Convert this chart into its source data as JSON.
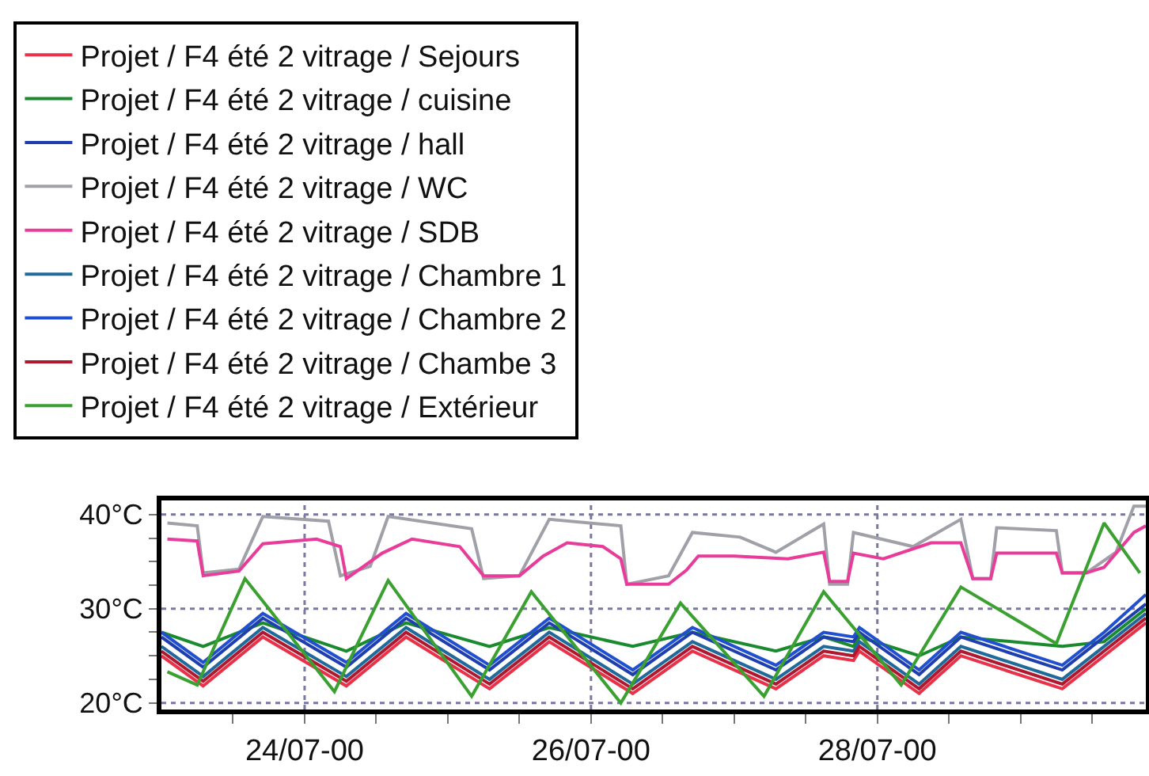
{
  "chart_data": {
    "type": "line",
    "x": [
      "2000-07-23T00:00",
      "2000-07-23T07:00",
      "2000-07-23T17:00",
      "2000-07-24T07:00",
      "2000-07-24T17:00",
      "2000-07-25T07:00",
      "2000-07-25T17:00",
      "2000-07-26T07:00",
      "2000-07-26T17:00",
      "2000-07-27T07:00",
      "2000-07-27T15:00",
      "2000-07-27T20:00",
      "2000-07-27T21:00",
      "2000-07-28T07:00",
      "2000-07-28T14:00",
      "2000-07-29T07:00",
      "2000-07-29T14:00",
      "2000-07-29T21:00"
    ],
    "series": [
      {
        "name": "Projet / F4 été 2 vitrage / Sejours",
        "color": "#e8324a",
        "values": [
          25,
          21.8,
          27,
          21.8,
          27,
          21.5,
          26.5,
          21,
          25.5,
          21.5,
          25,
          24.5,
          25.5,
          21,
          25,
          21.5,
          25,
          28.5
        ]
      },
      {
        "name": "Projet / F4 été 2 vitrage / cuisine",
        "color": "#1a8a2e",
        "values": [
          27.5,
          26,
          28.5,
          25.5,
          28.5,
          26,
          28,
          26,
          27.5,
          25.5,
          27,
          26,
          27,
          25,
          27,
          26,
          26.5,
          30
        ]
      },
      {
        "name": "Projet / F4 été 2 vitrage / hall",
        "color": "#1f3fb0",
        "values": [
          27,
          23.8,
          29,
          23.8,
          29,
          23.5,
          28.5,
          23,
          27.5,
          23.5,
          27,
          26.5,
          27.5,
          23,
          27,
          23.5,
          27,
          30.5
        ]
      },
      {
        "name": "Projet / F4 été 2 vitrage / WC",
        "color": "#a0a0a8",
        "x": [
          "2000-07-23T01:00",
          "2000-07-23T06:00",
          "2000-07-23T07:00",
          "2000-07-23T13:00",
          "2000-07-23T17:00",
          "2000-07-24T04:00",
          "2000-07-24T06:00",
          "2000-07-24T11:00",
          "2000-07-24T14:00",
          "2000-07-25T04:00",
          "2000-07-25T06:00",
          "2000-07-25T12:00",
          "2000-07-25T17:00",
          "2000-07-26T05:00",
          "2000-07-26T06:00",
          "2000-07-26T13:00",
          "2000-07-26T17:00",
          "2000-07-27T01:00",
          "2000-07-27T07:00",
          "2000-07-27T15:00",
          "2000-07-27T16:00",
          "2000-07-27T19:00",
          "2000-07-27T20:00",
          "2000-07-28T06:00",
          "2000-07-28T14:00",
          "2000-07-28T16:00",
          "2000-07-28T19:00",
          "2000-07-28T20:00",
          "2000-07-29T06:00",
          "2000-07-29T07:00",
          "2000-07-29T11:00",
          "2000-07-29T16:00",
          "2000-07-29T19:00",
          "2000-07-29T21:00"
        ],
        "values": [
          39.1,
          38.8,
          33.8,
          34.2,
          39.8,
          39.3,
          33.5,
          34.5,
          39.8,
          38.5,
          33.2,
          33.5,
          39.5,
          38.8,
          32.6,
          33.5,
          38.1,
          37.6,
          36,
          39,
          32.6,
          32.6,
          38.1,
          36.6,
          39.5,
          33.2,
          33.2,
          38.6,
          38.3,
          33.8,
          33.8,
          36,
          40.9,
          40.9
        ]
      },
      {
        "name": "Projet / F4 été 2 vitrage / SDB",
        "color": "#e83c9a",
        "x": [
          "2000-07-23T01:00",
          "2000-07-23T06:00",
          "2000-07-23T07:00",
          "2000-07-23T13:00",
          "2000-07-23T17:00",
          "2000-07-24T02:00",
          "2000-07-24T06:00",
          "2000-07-24T07:00",
          "2000-07-24T13:00",
          "2000-07-24T18:00",
          "2000-07-25T02:00",
          "2000-07-25T06:00",
          "2000-07-25T12:00",
          "2000-07-25T16:00",
          "2000-07-25T20:00",
          "2000-07-26T02:00",
          "2000-07-26T05:00",
          "2000-07-26T06:00",
          "2000-07-26T13:00",
          "2000-07-26T16:00",
          "2000-07-26T18:00",
          "2000-07-27T00:00",
          "2000-07-27T09:00",
          "2000-07-27T15:00",
          "2000-07-27T16:00",
          "2000-07-27T19:00",
          "2000-07-27T20:00",
          "2000-07-28T01:00",
          "2000-07-28T09:00",
          "2000-07-28T14:00",
          "2000-07-28T16:00",
          "2000-07-28T19:00",
          "2000-07-28T20:00",
          "2000-07-29T06:00",
          "2000-07-29T07:00",
          "2000-07-29T11:00",
          "2000-07-29T14:00",
          "2000-07-29T19:00",
          "2000-07-29T21:00"
        ],
        "values": [
          37.4,
          37.2,
          33.5,
          34,
          36.9,
          37.4,
          36.6,
          33.2,
          35.9,
          37.4,
          36.6,
          33.5,
          33.5,
          35.6,
          37,
          36.6,
          35.3,
          32.6,
          32.6,
          34.1,
          35.6,
          35.6,
          35.3,
          36,
          32.9,
          32.9,
          35.9,
          35.3,
          37,
          37,
          33.2,
          33.2,
          35.9,
          35.9,
          33.8,
          33.8,
          34.4,
          38.1,
          38.8
        ]
      },
      {
        "name": "Projet / F4 été 2 vitrage / Chambre 1",
        "color": "#1f6a9a",
        "values": [
          26,
          22.8,
          28,
          22.8,
          28,
          22.5,
          27.5,
          22,
          26.5,
          22.5,
          26,
          25.5,
          26.5,
          22,
          26,
          22.5,
          26,
          29.5
        ]
      },
      {
        "name": "Projet / F4 été 2 vitrage / Chambre 2",
        "color": "#2050d0",
        "values": [
          27.5,
          24.3,
          29.5,
          24.3,
          29.5,
          24,
          29,
          23.5,
          28,
          24,
          27.5,
          27,
          28,
          23.5,
          27.5,
          24,
          27.5,
          31.5
        ]
      },
      {
        "name": "Projet / F4 été 2 vitrage / Chambe 3",
        "color": "#b01830",
        "values": [
          25.5,
          22.3,
          27.5,
          22.3,
          27.5,
          22,
          27,
          21.5,
          26,
          22,
          25.5,
          25,
          26,
          21.5,
          25.5,
          22,
          25.5,
          29
        ]
      },
      {
        "name": "Projet / F4 été 2 vitrage / Extérieur",
        "color": "#3aa030",
        "x": [
          "2000-07-23T01:00",
          "2000-07-23T06:00",
          "2000-07-23T14:00",
          "2000-07-24T05:00",
          "2000-07-24T14:00",
          "2000-07-25T04:00",
          "2000-07-25T14:00",
          "2000-07-26T05:00",
          "2000-07-26T15:00",
          "2000-07-27T05:00",
          "2000-07-27T15:00",
          "2000-07-28T04:00",
          "2000-07-28T14:00",
          "2000-07-29T06:00",
          "2000-07-29T14:00",
          "2000-07-29T20:00"
        ],
        "values": [
          23.3,
          21.9,
          33.2,
          21.2,
          33,
          20.7,
          31.8,
          20,
          30.6,
          20.7,
          31.8,
          21.9,
          32.3,
          26.3,
          39.1,
          33.8
        ]
      }
    ],
    "xlim": [
      "2000-07-23T00:00",
      "2000-07-29T21:00"
    ],
    "xticks": [
      {
        "value": "2000-07-23T12:00",
        "label": null
      },
      {
        "value": "2000-07-24T00:00",
        "label": "24/07-00"
      },
      {
        "value": "2000-07-24T12:00",
        "label": null
      },
      {
        "value": "2000-07-25T00:00",
        "label": null
      },
      {
        "value": "2000-07-25T12:00",
        "label": null
      },
      {
        "value": "2000-07-26T00:00",
        "label": "26/07-00"
      },
      {
        "value": "2000-07-26T12:00",
        "label": null
      },
      {
        "value": "2000-07-27T00:00",
        "label": null
      },
      {
        "value": "2000-07-27T12:00",
        "label": null
      },
      {
        "value": "2000-07-28T00:00",
        "label": "28/07-00"
      },
      {
        "value": "2000-07-28T12:00",
        "label": null
      },
      {
        "value": "2000-07-29T00:00",
        "label": null
      },
      {
        "value": "2000-07-29T12:00",
        "label": null
      }
    ],
    "ylim": [
      19.3,
      41.5
    ],
    "yticks": [
      {
        "value": 20,
        "label": "20°C"
      },
      {
        "value": 22.5,
        "label": null
      },
      {
        "value": 25,
        "label": null
      },
      {
        "value": 27.5,
        "label": null
      },
      {
        "value": 30,
        "label": "30°C"
      },
      {
        "value": 32.5,
        "label": null
      },
      {
        "value": 35,
        "label": null
      },
      {
        "value": 37.5,
        "label": null
      },
      {
        "value": 40,
        "label": "40°C"
      }
    ],
    "grid": true,
    "legend": "top left",
    "line_style": "solid"
  }
}
